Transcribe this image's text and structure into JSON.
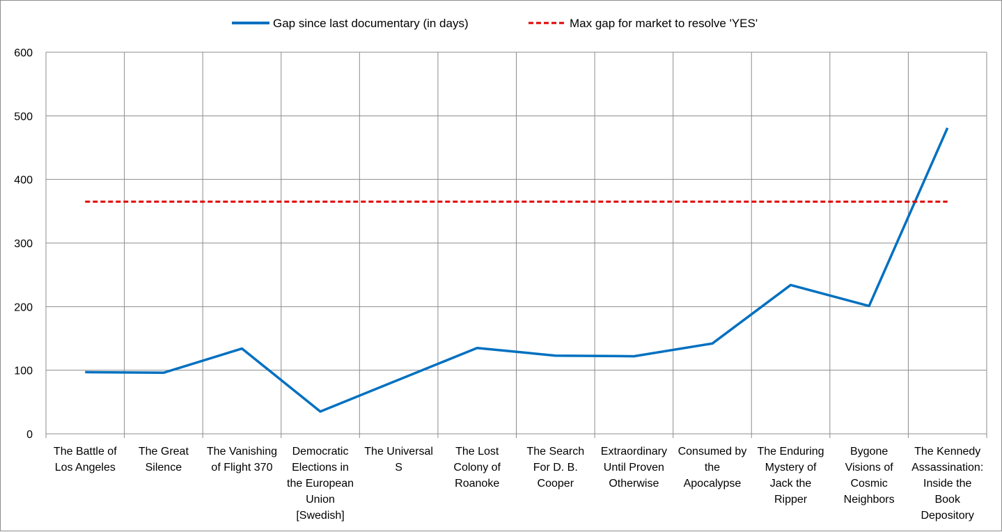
{
  "chart_data": {
    "type": "line",
    "categories": [
      [
        "The Battle of",
        "Los Angeles"
      ],
      [
        "The Great",
        "Silence"
      ],
      [
        "The Vanishing",
        "of Flight 370"
      ],
      [
        "Democratic",
        "Elections in",
        "the European",
        "Union",
        "[Swedish]"
      ],
      [
        "The Universal",
        "S"
      ],
      [
        "The Lost",
        "Colony of",
        "Roanoke"
      ],
      [
        "The Search",
        "For D. B.",
        "Cooper"
      ],
      [
        "Extraordinary",
        "Until Proven",
        "Otherwise"
      ],
      [
        "Consumed by",
        "the",
        "Apocalypse"
      ],
      [
        "The Enduring",
        "Mystery of",
        "Jack the",
        "Ripper"
      ],
      [
        "Bygone",
        "Visions of",
        "Cosmic",
        "Neighbors"
      ],
      [
        "The Kennedy",
        "Assassination:",
        "Inside the",
        "Book",
        "Depository"
      ]
    ],
    "series": [
      {
        "name": "Gap since last documentary (in days)",
        "color": "#0070c0",
        "style": "solid",
        "values": [
          97,
          96,
          134,
          35,
          null,
          135,
          123,
          122,
          142,
          234,
          201,
          481
        ]
      },
      {
        "name": "Max gap for market to resolve 'YES'",
        "color": "#e00000",
        "style": "dashed",
        "values": [
          365,
          365,
          365,
          365,
          365,
          365,
          365,
          365,
          365,
          365,
          365,
          365
        ]
      }
    ],
    "yticks": [
      0,
      100,
      200,
      300,
      400,
      500,
      600
    ],
    "ylim": [
      0,
      600
    ],
    "grid": true,
    "legend_position": "top-center",
    "title": "",
    "xlabel": "",
    "ylabel": ""
  }
}
